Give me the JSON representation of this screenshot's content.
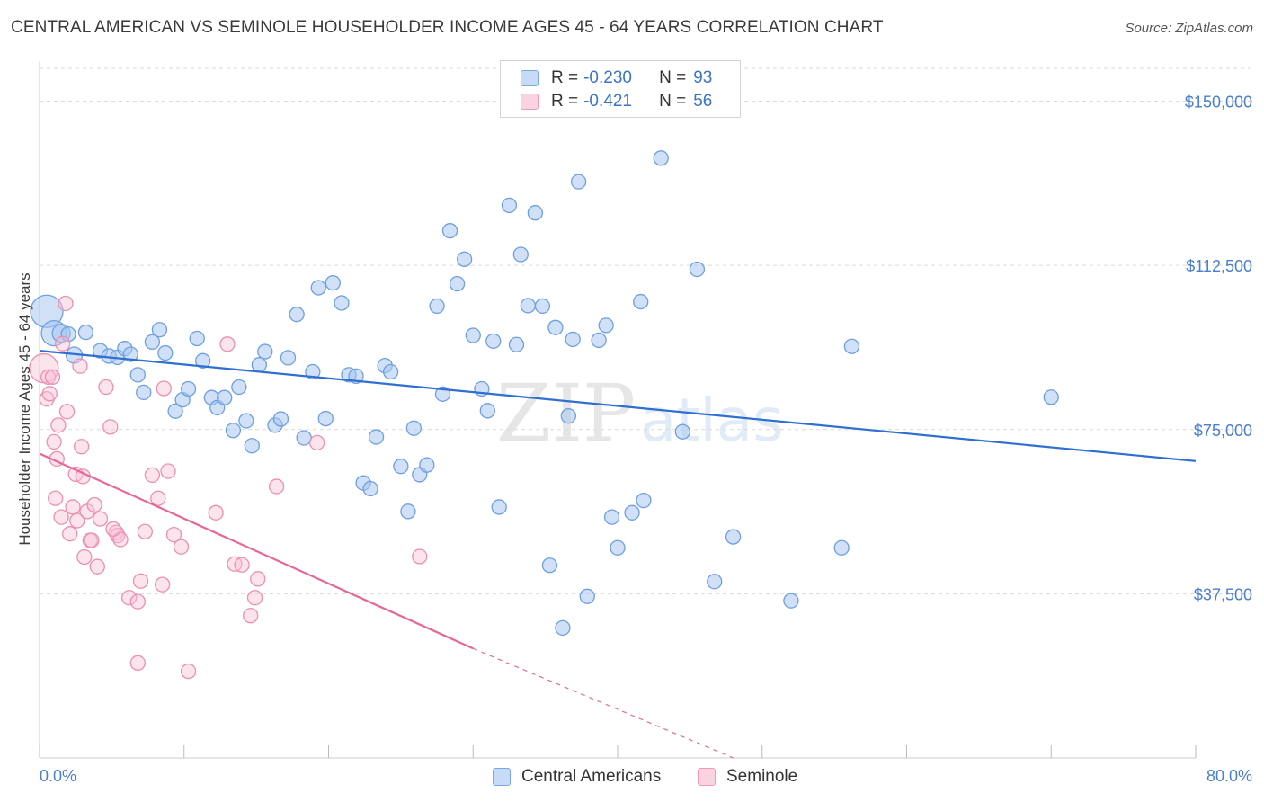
{
  "title": "CENTRAL AMERICAN VS SEMINOLE HOUSEHOLDER INCOME AGES 45 - 64 YEARS CORRELATION CHART",
  "source": "Source: ZipAtlas.com",
  "legend": {
    "r_label": "R =",
    "n_label": "N =",
    "series": [
      {
        "name": "Central Americans",
        "r": "-0.230",
        "n": "93",
        "color": "#7ba7e6"
      },
      {
        "name": "Seminole",
        "r": "-0.421",
        "n": "56",
        "color": "#ef9ab6"
      }
    ]
  },
  "watermark": {
    "zip": "ZIP",
    "atlas": "atlas"
  },
  "chart_data": {
    "type": "scatter",
    "title": "CENTRAL AMERICAN VS SEMINOLE HOUSEHOLDER INCOME AGES 45 - 64 YEARS CORRELATION CHART",
    "xlabel": "",
    "ylabel": "Householder Income Ages 45 - 64 years",
    "xlim": [
      0,
      80
    ],
    "ylim": [
      0,
      157500
    ],
    "x_tick_labels": [
      "0.0%",
      "80.0%"
    ],
    "y_ticks": [
      37500,
      75000,
      112500,
      150000
    ],
    "y_tick_labels": [
      "$37,500",
      "$75,000",
      "$112,500",
      "$150,000"
    ],
    "grid": true,
    "series": [
      {
        "name": "Central Americans",
        "color": "#7ba7e6",
        "trend": {
          "x0": 0,
          "y0": 93000,
          "x1": 80,
          "y1": 67800
        },
        "points": [
          [
            0.5,
            102000,
            18
          ],
          [
            1.0,
            97000,
            14
          ],
          [
            1.5,
            97000,
            10
          ],
          [
            2.0,
            96800,
            8
          ],
          [
            2.4,
            92000,
            9
          ],
          [
            3.2,
            97200,
            8
          ],
          [
            4.2,
            93000,
            8
          ],
          [
            4.8,
            91800,
            8
          ],
          [
            5.4,
            91500,
            8
          ],
          [
            5.9,
            93500,
            8
          ],
          [
            6.3,
            92200,
            8
          ],
          [
            6.8,
            87500,
            8
          ],
          [
            7.2,
            83500,
            8
          ],
          [
            7.8,
            95000,
            8
          ],
          [
            8.3,
            97800,
            8
          ],
          [
            8.7,
            92500,
            8
          ],
          [
            9.4,
            79200,
            8
          ],
          [
            9.9,
            81800,
            8
          ],
          [
            10.3,
            84300,
            8
          ],
          [
            10.9,
            95800,
            8
          ],
          [
            11.3,
            90700,
            8
          ],
          [
            11.9,
            82300,
            8
          ],
          [
            12.3,
            80000,
            8
          ],
          [
            12.8,
            82300,
            8
          ],
          [
            13.4,
            74800,
            8
          ],
          [
            13.8,
            84700,
            8
          ],
          [
            14.3,
            77000,
            8
          ],
          [
            14.7,
            71300,
            8
          ],
          [
            15.2,
            89800,
            8
          ],
          [
            15.6,
            92800,
            8
          ],
          [
            16.3,
            76000,
            8
          ],
          [
            16.7,
            77400,
            8
          ],
          [
            17.2,
            91400,
            8
          ],
          [
            17.8,
            101300,
            8
          ],
          [
            18.3,
            73100,
            8
          ],
          [
            18.9,
            88200,
            8
          ],
          [
            19.3,
            107400,
            8
          ],
          [
            19.8,
            77500,
            8
          ],
          [
            20.3,
            108500,
            8
          ],
          [
            20.9,
            103900,
            8
          ],
          [
            21.4,
            87500,
            8
          ],
          [
            21.9,
            87200,
            8
          ],
          [
            22.4,
            62800,
            8
          ],
          [
            22.9,
            61500,
            8
          ],
          [
            23.3,
            73300,
            8
          ],
          [
            23.9,
            89600,
            8
          ],
          [
            24.3,
            88200,
            8
          ],
          [
            25.0,
            66600,
            8
          ],
          [
            25.5,
            56300,
            8
          ],
          [
            25.9,
            75300,
            8
          ],
          [
            26.3,
            64700,
            8
          ],
          [
            26.8,
            66900,
            8
          ],
          [
            27.5,
            103200,
            8
          ],
          [
            27.9,
            83100,
            8
          ],
          [
            28.4,
            120400,
            8
          ],
          [
            28.9,
            108300,
            8
          ],
          [
            29.4,
            113900,
            8
          ],
          [
            30.0,
            96500,
            8
          ],
          [
            30.6,
            84300,
            8
          ],
          [
            31.0,
            79300,
            8
          ],
          [
            31.4,
            95200,
            8
          ],
          [
            31.8,
            57300,
            8
          ],
          [
            32.5,
            126200,
            8
          ],
          [
            33.0,
            94400,
            8
          ],
          [
            33.3,
            115000,
            8
          ],
          [
            33.8,
            103300,
            8
          ],
          [
            34.3,
            124500,
            8
          ],
          [
            34.8,
            103200,
            8
          ],
          [
            35.3,
            44000,
            8
          ],
          [
            35.7,
            98300,
            8
          ],
          [
            36.2,
            29700,
            8
          ],
          [
            36.6,
            78100,
            8
          ],
          [
            36.9,
            95600,
            8
          ],
          [
            37.3,
            131600,
            8
          ],
          [
            37.9,
            36900,
            8
          ],
          [
            38.7,
            95400,
            8
          ],
          [
            39.2,
            98800,
            8
          ],
          [
            39.6,
            55000,
            8
          ],
          [
            40.0,
            48000,
            8
          ],
          [
            41.0,
            56000,
            8
          ],
          [
            41.6,
            104200,
            8
          ],
          [
            41.8,
            58800,
            8
          ],
          [
            43.0,
            137000,
            8
          ],
          [
            44.5,
            74500,
            8
          ],
          [
            45.5,
            111600,
            8
          ],
          [
            46.7,
            40300,
            8
          ],
          [
            48.0,
            50500,
            8
          ],
          [
            52.0,
            35900,
            8
          ],
          [
            55.5,
            48000,
            8
          ],
          [
            56.2,
            94000,
            8
          ],
          [
            70.0,
            82400,
            8
          ]
        ]
      },
      {
        "name": "Seminole",
        "color": "#ef9ab6",
        "trend": {
          "x0": 0,
          "y0": 69500,
          "x1": 30,
          "y1": 25000
        },
        "trend_dashed": {
          "x0": 30,
          "y0": 25000,
          "x1": 48,
          "y1": 0
        },
        "points": [
          [
            0.3,
            89000,
            16
          ],
          [
            0.5,
            82000,
            8
          ],
          [
            0.6,
            87000,
            8
          ],
          [
            0.7,
            83200,
            8
          ],
          [
            0.9,
            87000,
            8
          ],
          [
            1.0,
            72200,
            8
          ],
          [
            1.1,
            59300,
            8
          ],
          [
            1.2,
            68300,
            8
          ],
          [
            1.3,
            76000,
            8
          ],
          [
            1.5,
            55000,
            8
          ],
          [
            1.6,
            94600,
            8
          ],
          [
            1.8,
            103800,
            8
          ],
          [
            1.9,
            79100,
            8
          ],
          [
            2.1,
            51200,
            8
          ],
          [
            2.3,
            57300,
            8
          ],
          [
            2.5,
            64800,
            8
          ],
          [
            2.6,
            54200,
            8
          ],
          [
            2.8,
            89500,
            8
          ],
          [
            2.9,
            71100,
            8
          ],
          [
            3.0,
            64300,
            8
          ],
          [
            3.1,
            45900,
            8
          ],
          [
            3.3,
            56300,
            8
          ],
          [
            3.5,
            49700,
            8
          ],
          [
            3.6,
            49700,
            8
          ],
          [
            3.8,
            57800,
            8
          ],
          [
            4.0,
            43700,
            8
          ],
          [
            4.2,
            54600,
            8
          ],
          [
            4.6,
            84700,
            8
          ],
          [
            4.9,
            75600,
            8
          ],
          [
            5.3,
            51500,
            8
          ],
          [
            5.4,
            50800,
            8
          ],
          [
            5.6,
            49900,
            8
          ],
          [
            6.2,
            36600,
            8
          ],
          [
            6.8,
            35700,
            8
          ],
          [
            6.8,
            21700,
            8
          ],
          [
            7.0,
            40400,
            8
          ],
          [
            7.3,
            51700,
            8
          ],
          [
            7.8,
            64600,
            8
          ],
          [
            8.2,
            59300,
            8
          ],
          [
            8.5,
            39600,
            8
          ],
          [
            8.6,
            84400,
            8
          ],
          [
            8.9,
            65500,
            8
          ],
          [
            9.3,
            51000,
            8
          ],
          [
            9.8,
            48200,
            8
          ],
          [
            10.3,
            19800,
            8
          ],
          [
            12.2,
            56000,
            8
          ],
          [
            13.0,
            94500,
            8
          ],
          [
            13.5,
            44300,
            8
          ],
          [
            14.0,
            44100,
            8
          ],
          [
            14.6,
            32500,
            8
          ],
          [
            14.9,
            36600,
            8
          ],
          [
            15.1,
            40900,
            8
          ],
          [
            16.4,
            62000,
            8
          ],
          [
            19.2,
            72000,
            8
          ],
          [
            26.3,
            46000,
            8
          ],
          [
            5.1,
            52300,
            8
          ]
        ]
      }
    ]
  }
}
